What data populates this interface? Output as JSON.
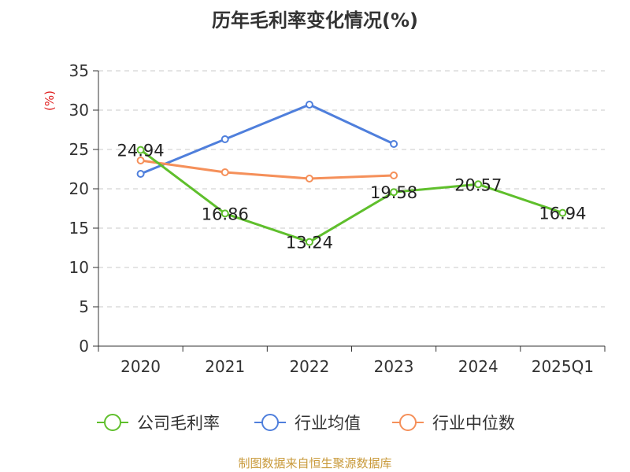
{
  "chart_data": {
    "type": "line",
    "title": "历年毛利率变化情况(%)",
    "ylabel": "(%)",
    "xlabel": "",
    "categories": [
      "2020",
      "2021",
      "2022",
      "2023",
      "2024",
      "2025Q1"
    ],
    "ylim": [
      0,
      35
    ],
    "yticks": [
      "0",
      "5",
      "10",
      "15",
      "20",
      "25",
      "30",
      "35"
    ],
    "grid": true,
    "legend_position": "bottom",
    "series": [
      {
        "name": "公司毛利率",
        "color": "#5fbf2c",
        "values": [
          24.94,
          16.86,
          13.24,
          19.58,
          20.57,
          16.94
        ],
        "labels": [
          "24.94",
          "16.86",
          "13.24",
          "19.58",
          "20.57",
          "16.94"
        ]
      },
      {
        "name": "行业均值",
        "color": "#4f7fdc",
        "values": [
          21.9,
          26.3,
          30.7,
          25.7,
          null,
          null
        ]
      },
      {
        "name": "行业中位数",
        "color": "#f5905a",
        "values": [
          23.6,
          22.1,
          21.3,
          21.7,
          null,
          null
        ]
      }
    ]
  },
  "source": "制图数据来自恒生聚源数据库"
}
